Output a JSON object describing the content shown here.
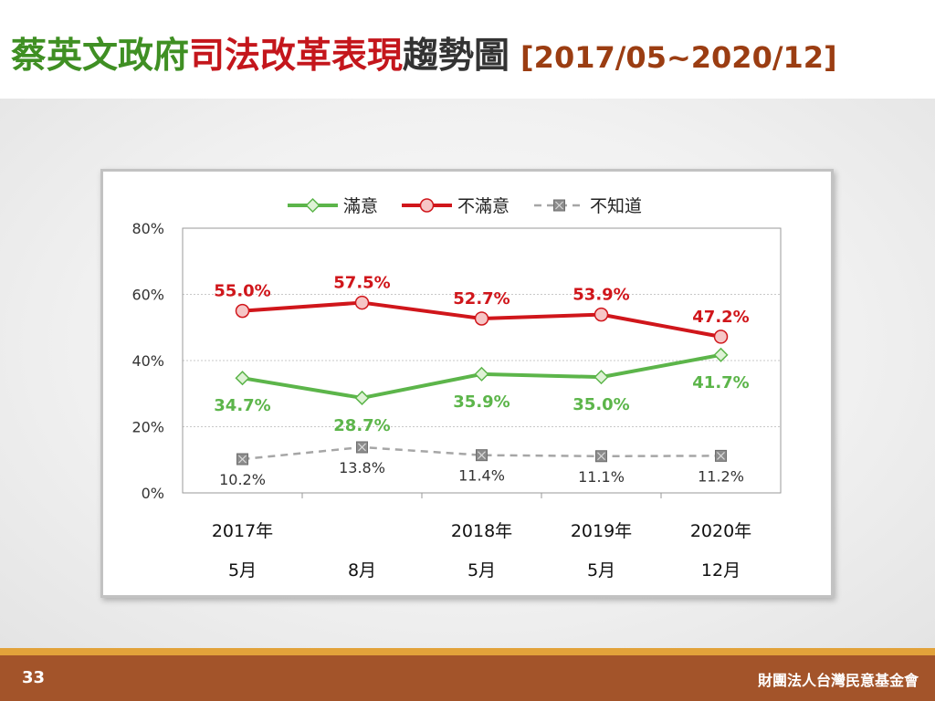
{
  "slide": {
    "title_parts": [
      {
        "text": "蔡英文政府",
        "color": "#3f8f23"
      },
      {
        "text": "司法改革表現",
        "color": "#c4161c"
      },
      {
        "text": "趨勢圖",
        "color": "#333333"
      }
    ],
    "title_range": "[2017/05~2020/12]",
    "title_range_color": "#9b3d12",
    "page_number": "33",
    "organization": "財團法人台灣民意基金會"
  },
  "chart_data": {
    "type": "line",
    "title": "",
    "xlabel": "",
    "ylabel": "",
    "categories": [
      {
        "year": "2017年",
        "month": "5月"
      },
      {
        "year": "",
        "month": "8月"
      },
      {
        "year": "2018年",
        "month": "5月"
      },
      {
        "year": "2019年",
        "month": "5月"
      },
      {
        "year": "2020年",
        "month": "12月"
      }
    ],
    "ylim": [
      0,
      80
    ],
    "yticks": [
      0,
      20,
      40,
      60,
      80
    ],
    "ytick_labels": [
      "0%",
      "20%",
      "40%",
      "60%",
      "80%"
    ],
    "grid": true,
    "legend_position": "top-center",
    "series": [
      {
        "name": "滿意",
        "values": [
          34.7,
          28.7,
          35.9,
          35.0,
          41.7
        ],
        "labels": [
          "34.7%",
          "28.7%",
          "35.9%",
          "35.0%",
          "41.7%"
        ],
        "label_position": "below",
        "color": "#5cb54a",
        "marker_fill": "#dff2d6",
        "marker": "diamond",
        "dash": false
      },
      {
        "name": "不滿意",
        "values": [
          55.0,
          57.5,
          52.7,
          53.9,
          47.2
        ],
        "labels": [
          "55.0%",
          "57.5%",
          "52.7%",
          "53.9%",
          "47.2%"
        ],
        "label_position": "above",
        "color": "#d0161b",
        "marker_fill": "#f6c6c6",
        "marker": "circle",
        "dash": false
      },
      {
        "name": "不知道",
        "values": [
          10.2,
          13.8,
          11.4,
          11.1,
          11.2
        ],
        "labels": [
          "10.2%",
          "13.8%",
          "11.4%",
          "11.1%",
          "11.2%"
        ],
        "label_position": "below",
        "color": "#a6a6a6",
        "marker_fill": "#8c8c8c",
        "marker": "square-x",
        "dash": true
      }
    ]
  }
}
